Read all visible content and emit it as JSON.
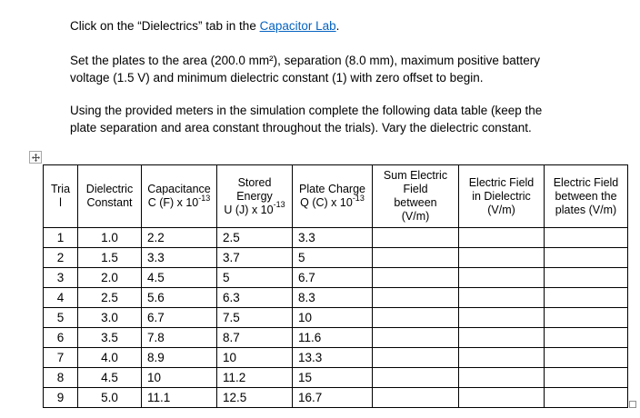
{
  "colors": {
    "link": "#0563C1",
    "table_border": "#000000",
    "handle_border": "#8f8f8f"
  },
  "icons": {
    "move_handle": "four-way-arrow-icon",
    "resize_handle": "small-square-resize-icon"
  },
  "paragraphs": {
    "p1": {
      "text_before_link": "Click on the “Dielectrics” tab in the ",
      "link_text": "Capacitor Lab",
      "text_after_link": "."
    },
    "p2": {
      "line1": "Set the plates to the area (200.0 mm²), separation (8.0 mm), maximum positive battery",
      "line2": "voltage (1.5 V) and minimum dielectric constant (1) with zero offset to begin."
    },
    "p3": {
      "line1": "Using the provided meters in the simulation complete the following data table (keep the",
      "line2": "plate separation and area constant throughout the trials). Vary the dielectric constant."
    }
  },
  "table": {
    "columns": [
      {
        "id": "trial",
        "label": "Trial",
        "lines": [
          "Tria",
          "l"
        ]
      },
      {
        "id": "dielectric-constant",
        "label": "Dielectric Constant",
        "lines": [
          "Dielectric",
          "Constant"
        ]
      },
      {
        "id": "capacitance",
        "label": "Capacitance C (F) x 10⁻¹³",
        "lines": [
          "Capacitance",
          "C (F) x 10⁻¹³"
        ]
      },
      {
        "id": "stored-energy",
        "label": "Stored Energy U (J) x 10⁻¹³",
        "lines": [
          "Stored",
          "Energy",
          "U (J) x 10⁻¹³"
        ]
      },
      {
        "id": "plate-charge",
        "label": "Plate Charge Q (C) x 10⁻¹³",
        "lines": [
          "Plate Charge",
          "Q (C) x 10⁻¹³"
        ]
      },
      {
        "id": "sum-electric-field",
        "label": "Sum Electric Field between (V/m)",
        "lines": [
          "Sum Electric",
          "Field",
          "between",
          "(V/m)"
        ]
      },
      {
        "id": "electric-field-in-dielectric",
        "label": "Electric Field in Dielectric (V/m)",
        "lines": [
          "Electric Field",
          "in Dielectric",
          "(V/m)"
        ]
      },
      {
        "id": "electric-field-between-plates",
        "label": "Electric Field between the plates (V/m)",
        "lines": [
          "Electric Field",
          "between the",
          "plates (V/m)"
        ]
      }
    ],
    "rows": [
      [
        "1",
        "1.0",
        "2.2",
        "2.5",
        "3.3",
        "",
        "",
        ""
      ],
      [
        "2",
        "1.5",
        "3.3",
        "3.7",
        "5",
        "",
        "",
        ""
      ],
      [
        "3",
        "2.0",
        "4.5",
        "5",
        "6.7",
        "",
        "",
        ""
      ],
      [
        "4",
        "2.5",
        "5.6",
        "6.3",
        "8.3",
        "",
        "",
        ""
      ],
      [
        "5",
        "3.0",
        "6.7",
        "7.5",
        "10",
        "",
        "",
        ""
      ],
      [
        "6",
        "3.5",
        "7.8",
        "8.7",
        "11.6",
        "",
        "",
        ""
      ],
      [
        "7",
        "4.0",
        "8.9",
        "10",
        "13.3",
        "",
        "",
        ""
      ],
      [
        "8",
        "4.5",
        "10",
        "11.2",
        "15",
        "",
        "",
        ""
      ],
      [
        "9",
        "5.0",
        "11.1",
        "12.5",
        "16.7",
        "",
        "",
        ""
      ]
    ]
  }
}
